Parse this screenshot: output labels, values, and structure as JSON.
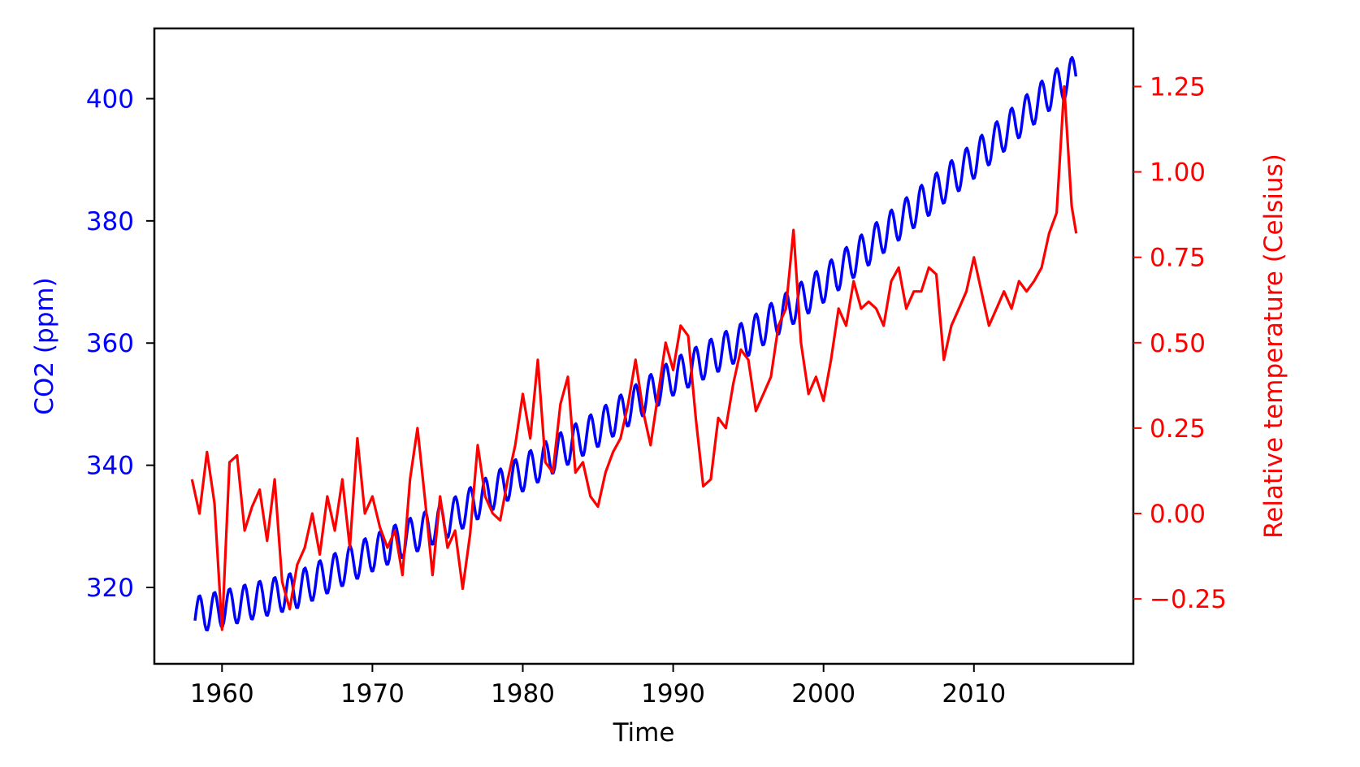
{
  "chart_data": {
    "type": "line",
    "title": "",
    "xlabel": "Time",
    "ylabel_left": "CO2 (ppm)",
    "ylabel_right": "Relative temperature (Celsius)",
    "xlim": [
      1955.5,
      2020.6
    ],
    "ylim_left": [
      307.5,
      411.5
    ],
    "ylim_right": [
      -0.44,
      1.42
    ],
    "x_ticks": [
      1960,
      1970,
      1980,
      1990,
      2000,
      2010
    ],
    "y_left_ticks": [
      320,
      340,
      360,
      380,
      400
    ],
    "y_right_ticks": [
      -0.25,
      0.0,
      0.25,
      0.5,
      0.75,
      1.0,
      1.25
    ],
    "y_right_tick_labels": [
      "−0.25",
      "0.00",
      "0.25",
      "0.50",
      "0.75",
      "1.00",
      "1.25"
    ],
    "grid": false,
    "legend": "none",
    "colors": {
      "co2": "#0000ff",
      "temperature": "#ff0000",
      "axes": "#000000"
    },
    "series": [
      {
        "axis": "left",
        "color": "#0000ff",
        "seasonal_amplitude_ppm": 3.0,
        "trend_x": [
          1958.2,
          1960,
          1965,
          1970,
          1975,
          1980,
          1985,
          1990,
          1995,
          2000,
          2005,
          2010,
          2015,
          2016.8
        ],
        "trend_y": [
          315.5,
          316.5,
          319.6,
          325.6,
          331.1,
          338.7,
          346.0,
          354.4,
          360.9,
          369.6,
          379.8,
          389.9,
          401.0,
          404.3
        ]
      },
      {
        "axis": "right",
        "color": "#ff0000",
        "x": [
          1958.0,
          1958.5,
          1959.0,
          1959.5,
          1960.0,
          1960.5,
          1961.0,
          1961.5,
          1962.0,
          1962.5,
          1963.0,
          1963.5,
          1964.0,
          1964.5,
          1965.0,
          1965.5,
          1966.0,
          1966.5,
          1967.0,
          1967.5,
          1968.0,
          1968.5,
          1969.0,
          1969.5,
          1970.0,
          1970.5,
          1971.0,
          1971.5,
          1972.0,
          1972.5,
          1973.0,
          1973.5,
          1974.0,
          1974.5,
          1975.0,
          1975.5,
          1976.0,
          1976.5,
          1977.0,
          1977.5,
          1978.0,
          1978.5,
          1979.0,
          1979.5,
          1980.0,
          1980.5,
          1981.0,
          1981.5,
          1982.0,
          1982.5,
          1983.0,
          1983.5,
          1984.0,
          1984.5,
          1985.0,
          1985.5,
          1986.0,
          1986.5,
          1987.0,
          1987.5,
          1988.0,
          1988.5,
          1989.0,
          1989.5,
          1990.0,
          1990.5,
          1991.0,
          1991.5,
          1992.0,
          1992.5,
          1993.0,
          1993.5,
          1994.0,
          1994.5,
          1995.0,
          1995.5,
          1996.0,
          1996.5,
          1997.0,
          1997.5,
          1998.0,
          1998.5,
          1999.0,
          1999.5,
          2000.0,
          2000.5,
          2001.0,
          2001.5,
          2002.0,
          2002.5,
          2003.0,
          2003.5,
          2004.0,
          2004.5,
          2005.0,
          2005.5,
          2006.0,
          2006.5,
          2007.0,
          2007.5,
          2008.0,
          2008.5,
          2009.0,
          2009.5,
          2010.0,
          2010.5,
          2011.0,
          2011.5,
          2012.0,
          2012.5,
          2013.0,
          2013.5,
          2014.0,
          2014.5,
          2015.0,
          2015.5,
          2016.0,
          2016.5,
          2016.8
        ],
        "y": [
          0.1,
          0.0,
          0.18,
          0.03,
          -0.34,
          0.15,
          0.17,
          -0.05,
          0.02,
          0.07,
          -0.08,
          0.1,
          -0.2,
          -0.28,
          -0.15,
          -0.1,
          0.0,
          -0.12,
          0.05,
          -0.05,
          0.1,
          -0.1,
          0.22,
          0.0,
          0.05,
          -0.04,
          -0.1,
          -0.05,
          -0.18,
          0.1,
          0.25,
          0.04,
          -0.18,
          0.05,
          -0.1,
          -0.05,
          -0.22,
          -0.06,
          0.2,
          0.05,
          0.0,
          -0.02,
          0.1,
          0.2,
          0.35,
          0.22,
          0.45,
          0.15,
          0.12,
          0.32,
          0.4,
          0.12,
          0.15,
          0.05,
          0.02,
          0.12,
          0.18,
          0.22,
          0.32,
          0.45,
          0.3,
          0.2,
          0.35,
          0.5,
          0.42,
          0.55,
          0.52,
          0.28,
          0.08,
          0.1,
          0.28,
          0.25,
          0.38,
          0.48,
          0.45,
          0.3,
          0.35,
          0.4,
          0.55,
          0.6,
          0.83,
          0.5,
          0.35,
          0.4,
          0.33,
          0.45,
          0.6,
          0.55,
          0.68,
          0.6,
          0.62,
          0.6,
          0.55,
          0.68,
          0.72,
          0.6,
          0.65,
          0.65,
          0.72,
          0.7,
          0.45,
          0.55,
          0.6,
          0.65,
          0.75,
          0.65,
          0.55,
          0.6,
          0.65,
          0.6,
          0.68,
          0.65,
          0.68,
          0.72,
          0.82,
          0.88,
          1.25,
          0.9,
          0.82
        ]
      }
    ]
  }
}
